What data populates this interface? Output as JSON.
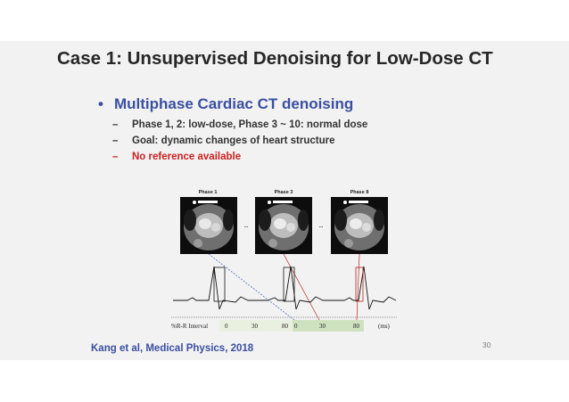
{
  "title": "Case 1: Unsupervised Denoising for Low-Dose CT",
  "main_bullet": {
    "marker": "•",
    "text": "Multiphase Cardiac CT denoising",
    "color": "#3b4fa0"
  },
  "sub_bullets": [
    {
      "marker": "–",
      "text": "Phase 1, 2: low-dose, Phase 3 ~ 10: normal dose",
      "color": "#333333"
    },
    {
      "marker": "–",
      "text": "Goal: dynamic changes of heart structure",
      "color": "#333333"
    },
    {
      "marker": "–",
      "text": "No reference available",
      "color": "#cc1f1f"
    }
  ],
  "figure": {
    "phase_labels": [
      "Phase 1",
      "Phase 3",
      "Phase 8"
    ],
    "ellipsis": [
      "...",
      "..."
    ],
    "interval_label": "%R-R Interval",
    "ticks": [
      "0",
      "30",
      "80",
      "0",
      "30",
      "80"
    ],
    "unit": "(ms)"
  },
  "citation": "Kang et al, Medical Physics, 2018",
  "page_number": "30"
}
